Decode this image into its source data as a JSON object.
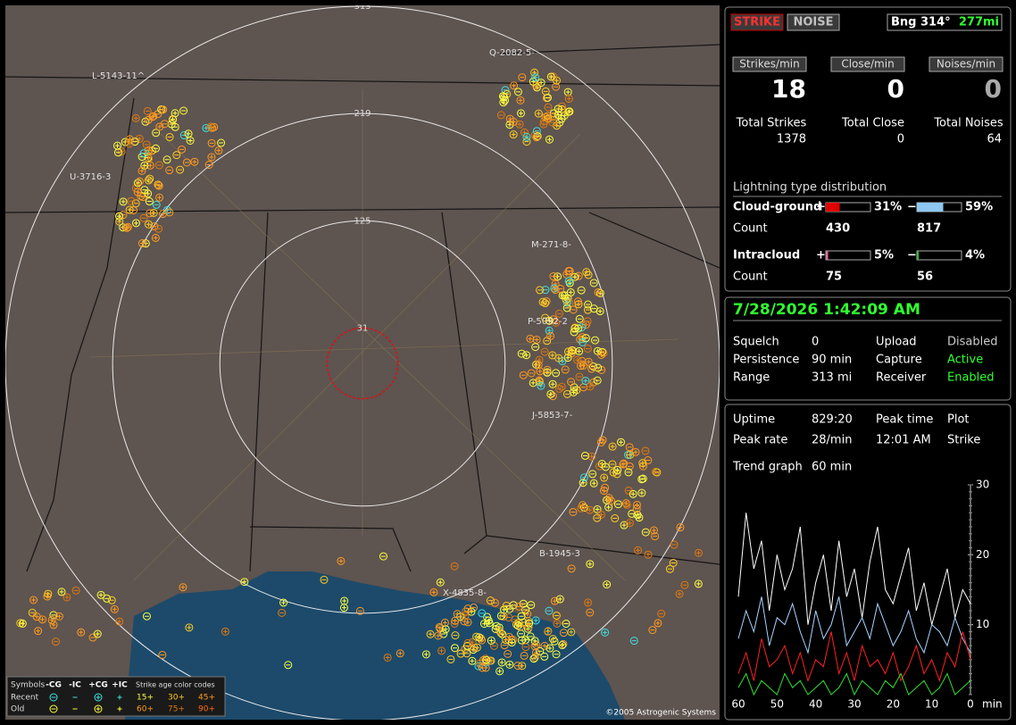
{
  "map": {
    "range_rings": [
      313,
      219,
      125,
      31
    ],
    "storm_labels": [
      "Q-2082-5-",
      "L-5143-11^",
      "U-3716-3",
      "M-271-8-",
      "P-5092-2",
      "J-5853-7-",
      "B-1945-3",
      "X-4835-8-"
    ],
    "legend": {
      "symbols_title": "Symbols",
      "symbol_types": [
        "-CG",
        "-IC",
        "+CG",
        "+IC"
      ],
      "age_title": "Strike age color codes",
      "rows": [
        "Recent",
        "Old"
      ],
      "recent_ages": [
        "15+",
        "30+",
        "45+"
      ],
      "old_ages": [
        "60+",
        "75+",
        "90+"
      ]
    },
    "copyright": "©2005 Astrogenic Systems"
  },
  "status": {
    "mode_buttons": [
      "STRIKE",
      "NOISE"
    ],
    "bearing": "Bng 314°",
    "distance": "277mi",
    "rates": [
      {
        "label": "Strikes/min",
        "value": 18
      },
      {
        "label": "Close/min",
        "value": 0
      },
      {
        "label": "Noises/min",
        "value": 0
      }
    ],
    "totals": [
      {
        "label": "Total Strikes",
        "value": 1378
      },
      {
        "label": "Total Close",
        "value": 0
      },
      {
        "label": "Total Noises",
        "value": 64
      }
    ],
    "distribution": {
      "title": "Lightning type distribution",
      "count_label": "Count",
      "rows": [
        {
          "label": "Cloud-ground",
          "plus": {
            "sign": "+",
            "pct": 31,
            "pct_label": "31%",
            "count": 430,
            "color": "#e00000"
          },
          "minus": {
            "sign": "−",
            "pct": 59,
            "pct_label": "59%",
            "count": 817,
            "color": "#8ec8f0"
          }
        },
        {
          "label": "Intracloud",
          "plus": {
            "sign": "+",
            "pct": 5,
            "pct_label": "5%",
            "count": 75,
            "color": "#e070a0"
          },
          "minus": {
            "sign": "−",
            "pct": 4,
            "pct_label": "4%",
            "count": 56,
            "color": "#30c030"
          }
        }
      ]
    }
  },
  "settings": {
    "clock": "7/28/2026 1:42:09 AM",
    "rows": [
      [
        "Squelch",
        "0",
        "Upload",
        "Disabled"
      ],
      [
        "Persistence",
        "90 min",
        "Capture",
        "Active"
      ],
      [
        "Range",
        "313 mi",
        "Receiver",
        "Enabled"
      ]
    ]
  },
  "stats": {
    "rows": [
      [
        "Uptime",
        "829:20",
        "Peak time",
        "Plot"
      ],
      [
        "Peak rate",
        "28/min",
        "12:01 AM",
        "Strike"
      ]
    ],
    "trend_label": "Trend graph",
    "trend_window": "60 min"
  },
  "chart_data": {
    "type": "line",
    "x": [
      60,
      58,
      56,
      54,
      52,
      50,
      48,
      46,
      44,
      42,
      40,
      38,
      36,
      34,
      32,
      30,
      28,
      26,
      24,
      22,
      20,
      18,
      16,
      14,
      12,
      10,
      8,
      6,
      4,
      2,
      0
    ],
    "xlim": [
      60,
      0
    ],
    "xticks": [
      60,
      50,
      40,
      30,
      20,
      10,
      0
    ],
    "x_unit": "min",
    "ylim": [
      0,
      30
    ],
    "yticks": [
      10,
      20,
      30
    ],
    "series": [
      {
        "color": "#ffffff",
        "values": [
          14,
          26,
          18,
          22,
          12,
          20,
          15,
          18,
          24,
          10,
          16,
          20,
          12,
          22,
          14,
          18,
          11,
          19,
          24,
          15,
          13,
          17,
          21,
          12,
          16,
          10,
          14,
          18,
          11,
          15,
          13
        ]
      },
      {
        "color": "#a8d4ff",
        "values": [
          8,
          12,
          9,
          14,
          7,
          11,
          10,
          13,
          9,
          6,
          12,
          8,
          10,
          14,
          7,
          9,
          11,
          8,
          13,
          10,
          7,
          9,
          12,
          8,
          6,
          10,
          9,
          7,
          11,
          8,
          6
        ]
      },
      {
        "color": "#ff2020",
        "values": [
          3,
          6,
          2,
          8,
          4,
          5,
          7,
          3,
          6,
          2,
          5,
          4,
          9,
          3,
          6,
          2,
          7,
          4,
          5,
          3,
          6,
          2,
          4,
          7,
          3,
          5,
          2,
          6,
          4,
          9,
          5
        ]
      },
      {
        "color": "#30e030",
        "values": [
          1,
          3,
          0,
          2,
          1,
          0,
          3,
          1,
          2,
          0,
          1,
          2,
          0,
          1,
          3,
          0,
          2,
          1,
          0,
          2,
          1,
          3,
          0,
          1,
          2,
          0,
          1,
          3,
          0,
          1,
          2
        ]
      }
    ]
  }
}
